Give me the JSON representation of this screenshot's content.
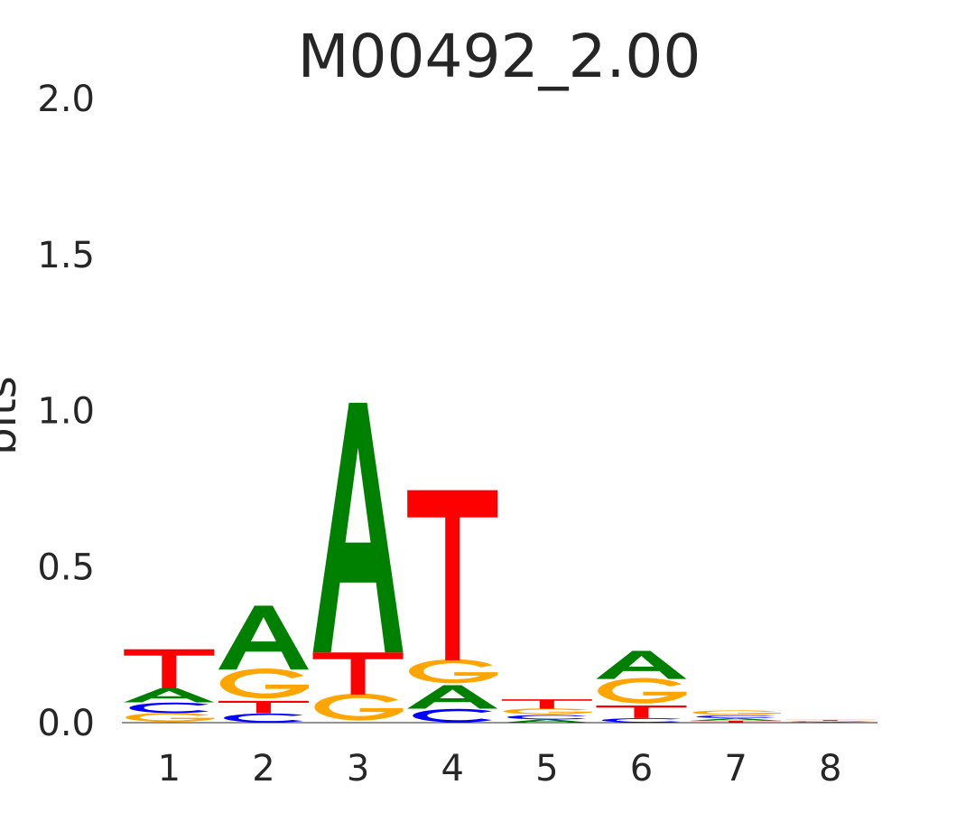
{
  "chart_data": {
    "type": "sequence_logo",
    "title": "M00492_2.00",
    "xlabel": "",
    "ylabel": "bits",
    "ylim": [
      0,
      2
    ],
    "yticks": [
      "0.0",
      "0.5",
      "1.0",
      "1.5",
      "2.0"
    ],
    "positions": [
      "1",
      "2",
      "3",
      "4",
      "5",
      "6",
      "7",
      "8"
    ],
    "colors": {
      "A": "#008000",
      "C": "#0000ff",
      "G": "#ffa500",
      "T": "#ff0000"
    },
    "stacks": [
      [
        {
          "letter": "G",
          "bits": 0.03
        },
        {
          "letter": "C",
          "bits": 0.035
        },
        {
          "letter": "A",
          "bits": 0.045
        },
        {
          "letter": "T",
          "bits": 0.125
        }
      ],
      [
        {
          "letter": "C",
          "bits": 0.03
        },
        {
          "letter": "T",
          "bits": 0.04
        },
        {
          "letter": "G",
          "bits": 0.1
        },
        {
          "letter": "A",
          "bits": 0.205
        }
      ],
      [
        {
          "letter": "G",
          "bits": 0.09
        },
        {
          "letter": "T",
          "bits": 0.135
        },
        {
          "letter": "A",
          "bits": 0.8
        }
      ],
      [
        {
          "letter": "C",
          "bits": 0.045
        },
        {
          "letter": "A",
          "bits": 0.075
        },
        {
          "letter": "G",
          "bits": 0.08
        },
        {
          "letter": "T",
          "bits": 0.545
        }
      ],
      [
        {
          "letter": "A",
          "bits": 0.01
        },
        {
          "letter": "C",
          "bits": 0.015
        },
        {
          "letter": "G",
          "bits": 0.02
        },
        {
          "letter": "T",
          "bits": 0.03
        }
      ],
      [
        {
          "letter": "C",
          "bits": 0.015
        },
        {
          "letter": "T",
          "bits": 0.04
        },
        {
          "letter": "G",
          "bits": 0.085
        },
        {
          "letter": "A",
          "bits": 0.09
        }
      ],
      [
        {
          "letter": "T",
          "bits": 0.006
        },
        {
          "letter": "A",
          "bits": 0.008
        },
        {
          "letter": "C",
          "bits": 0.01
        },
        {
          "letter": "G",
          "bits": 0.015
        }
      ],
      [
        {
          "letter": "A",
          "bits": 0.002
        },
        {
          "letter": "C",
          "bits": 0.002
        },
        {
          "letter": "G",
          "bits": 0.002
        },
        {
          "letter": "T",
          "bits": 0.003
        }
      ]
    ]
  }
}
